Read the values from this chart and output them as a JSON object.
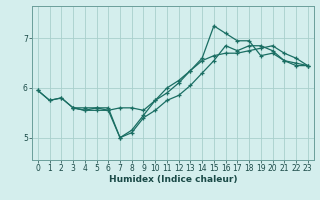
{
  "xlabel": "Humidex (Indice chaleur)",
  "ylabel": "",
  "background_color": "#d4eeed",
  "grid_color": "#a8cfcc",
  "line_color": "#1a6e63",
  "spine_color": "#6a9e9a",
  "tick_color": "#1a4a47",
  "x_ticks": [
    0,
    1,
    2,
    3,
    4,
    5,
    6,
    7,
    8,
    9,
    10,
    11,
    12,
    13,
    14,
    15,
    16,
    17,
    18,
    19,
    20,
    21,
    22,
    23
  ],
  "y_ticks": [
    5,
    6,
    7
  ],
  "ylim": [
    4.55,
    7.65
  ],
  "xlim": [
    -0.5,
    23.5
  ],
  "line1_x": [
    0,
    1,
    2,
    3,
    4,
    5,
    6,
    7,
    8,
    9,
    10,
    11,
    12,
    13,
    14,
    15,
    16,
    17,
    18,
    19,
    20,
    21,
    22,
    23
  ],
  "line1_y": [
    5.95,
    5.75,
    5.8,
    5.6,
    5.6,
    5.6,
    5.6,
    5.0,
    5.1,
    5.4,
    5.55,
    5.75,
    5.85,
    6.05,
    6.3,
    6.55,
    6.85,
    6.75,
    6.85,
    6.85,
    6.75,
    6.55,
    6.5,
    6.45
  ],
  "line2_x": [
    0,
    1,
    2,
    3,
    4,
    5,
    6,
    7,
    8,
    9,
    10,
    11,
    12,
    13,
    14,
    15,
    16,
    17,
    18,
    19,
    20,
    21,
    22,
    23
  ],
  "line2_y": [
    5.95,
    5.75,
    5.8,
    5.6,
    5.55,
    5.55,
    5.55,
    5.6,
    5.6,
    5.55,
    5.75,
    6.0,
    6.15,
    6.35,
    6.55,
    6.65,
    6.7,
    6.7,
    6.75,
    6.8,
    6.85,
    6.7,
    6.6,
    6.45
  ],
  "line3_x": [
    3,
    4,
    5,
    6,
    7,
    8,
    9,
    10,
    11,
    12,
    13,
    14,
    15,
    16,
    17,
    18,
    19,
    20,
    21,
    22,
    23
  ],
  "line3_y": [
    5.6,
    5.55,
    5.6,
    5.55,
    5.0,
    5.15,
    5.45,
    5.75,
    5.9,
    6.1,
    6.35,
    6.6,
    7.25,
    7.1,
    6.95,
    6.95,
    6.65,
    6.7,
    6.55,
    6.45,
    6.45
  ],
  "xlabel_fontsize": 6.5,
  "ylabel_fontsize": 6,
  "tick_fontsize": 5.5,
  "line_width": 0.9,
  "marker_size": 3.0,
  "marker_ew": 0.9
}
